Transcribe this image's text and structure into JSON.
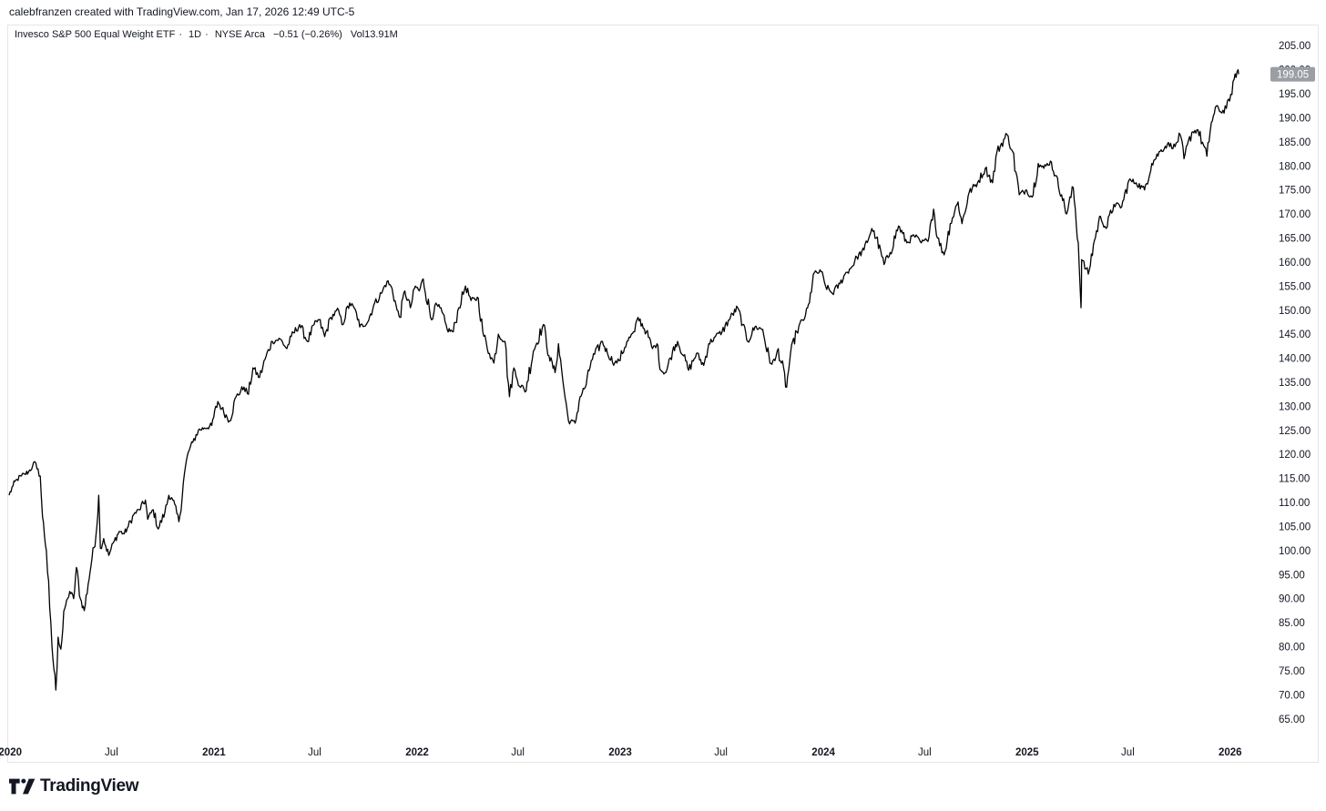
{
  "header": {
    "credit": "calebfranzen created with TradingView.com, Jan 17, 2026 12:49 UTC-5"
  },
  "legend": {
    "title": "Invesco S&P 500 Equal Weight ETF",
    "interval": "1D",
    "exchange": "NYSE Arca",
    "separator": "·",
    "change": "−0.51 (−0.26%)",
    "volume_label": "Vol",
    "volume_value": "13.91M"
  },
  "price_label": "199.05",
  "footer": {
    "brand": "TradingView",
    "logo_icon": "tradingview-logo-icon"
  },
  "colors": {
    "line": "#000000",
    "price_tag_bg": "#9b9ea3",
    "price_tag_text": "#ffffff",
    "axis_text": "#131722"
  },
  "chart_data": {
    "type": "line",
    "title": "Invesco S&P 500 Equal Weight ETF",
    "xlabel": "",
    "ylabel": "",
    "ylim": [
      62.5,
      207.5
    ],
    "grid": false,
    "y_ticks": [
      "205.00",
      "200.00",
      "195.00",
      "190.00",
      "185.00",
      "180.00",
      "175.00",
      "170.00",
      "165.00",
      "160.00",
      "155.00",
      "150.00",
      "145.00",
      "140.00",
      "135.00",
      "130.00",
      "125.00",
      "120.00",
      "115.00",
      "110.00",
      "105.00",
      "100.00",
      "95.00",
      "90.00",
      "85.00",
      "80.00",
      "75.00",
      "70.00",
      "65.00"
    ],
    "x_ticks": [
      {
        "label": "2020",
        "date": "2020-01-01",
        "year": true
      },
      {
        "label": "Jul",
        "date": "2020-07-01",
        "year": false
      },
      {
        "label": "2021",
        "date": "2021-01-01",
        "year": true
      },
      {
        "label": "Jul",
        "date": "2021-07-01",
        "year": false
      },
      {
        "label": "2022",
        "date": "2022-01-01",
        "year": true
      },
      {
        "label": "Jul",
        "date": "2022-07-01",
        "year": false
      },
      {
        "label": "2023",
        "date": "2023-01-01",
        "year": true
      },
      {
        "label": "Jul",
        "date": "2023-07-01",
        "year": false
      },
      {
        "label": "2024",
        "date": "2024-01-01",
        "year": true
      },
      {
        "label": "Jul",
        "date": "2024-07-01",
        "year": false
      },
      {
        "label": "2025",
        "date": "2025-01-01",
        "year": true
      },
      {
        "label": "Jul",
        "date": "2025-07-01",
        "year": false
      },
      {
        "label": "2026",
        "date": "2026-01-01",
        "year": true
      }
    ],
    "series": [
      {
        "points": [
          [
            "2019-12-30",
            111.5
          ],
          [
            "2020-01-06",
            113.5
          ],
          [
            "2020-01-13",
            114.8
          ],
          [
            "2020-01-21",
            115.5
          ],
          [
            "2020-01-27",
            115.9
          ],
          [
            "2020-02-03",
            116.4
          ],
          [
            "2020-02-10",
            117.5
          ],
          [
            "2020-02-14",
            118.5
          ],
          [
            "2020-02-18",
            117.0
          ],
          [
            "2020-02-24",
            115.5
          ],
          [
            "2020-02-28",
            107.0
          ],
          [
            "2020-03-06",
            100.0
          ],
          [
            "2020-03-12",
            88.0
          ],
          [
            "2020-03-16",
            80.0
          ],
          [
            "2020-03-23",
            71.0
          ],
          [
            "2020-03-27",
            82.0
          ],
          [
            "2020-04-01",
            79.5
          ],
          [
            "2020-04-08",
            88.0
          ],
          [
            "2020-04-13",
            90.0
          ],
          [
            "2020-04-17",
            91.5
          ],
          [
            "2020-04-24",
            90.0
          ],
          [
            "2020-04-29",
            96.5
          ],
          [
            "2020-05-06",
            90.0
          ],
          [
            "2020-05-13",
            87.5
          ],
          [
            "2020-05-20",
            93.0
          ],
          [
            "2020-05-27",
            98.5
          ],
          [
            "2020-06-03",
            103.0
          ],
          [
            "2020-06-08",
            111.5
          ],
          [
            "2020-06-11",
            100.5
          ],
          [
            "2020-06-17",
            102.5
          ],
          [
            "2020-06-26",
            99.0
          ],
          [
            "2020-07-06",
            102.0
          ],
          [
            "2020-07-15",
            104.0
          ],
          [
            "2020-07-24",
            103.5
          ],
          [
            "2020-07-31",
            105.0
          ],
          [
            "2020-08-10",
            107.5
          ],
          [
            "2020-08-20",
            108.5
          ],
          [
            "2020-08-31",
            110.5
          ],
          [
            "2020-09-04",
            106.5
          ],
          [
            "2020-09-14",
            108.5
          ],
          [
            "2020-09-23",
            104.5
          ],
          [
            "2020-10-05",
            108.0
          ],
          [
            "2020-10-12",
            111.5
          ],
          [
            "2020-10-19",
            110.5
          ],
          [
            "2020-10-30",
            106.0
          ],
          [
            "2020-11-09",
            116.0
          ],
          [
            "2020-11-16",
            120.5
          ],
          [
            "2020-11-24",
            122.5
          ],
          [
            "2020-12-04",
            125.0
          ],
          [
            "2020-12-15",
            125.5
          ],
          [
            "2020-12-28",
            126.0
          ],
          [
            "2021-01-08",
            131.0
          ],
          [
            "2021-01-15",
            129.5
          ],
          [
            "2021-01-29",
            127.0
          ],
          [
            "2021-02-10",
            132.0
          ],
          [
            "2021-02-24",
            134.0
          ],
          [
            "2021-03-04",
            132.5
          ],
          [
            "2021-03-12",
            138.0
          ],
          [
            "2021-03-24",
            136.0
          ],
          [
            "2021-04-05",
            140.5
          ],
          [
            "2021-04-16",
            143.5
          ],
          [
            "2021-04-30",
            144.0
          ],
          [
            "2021-05-12",
            142.0
          ],
          [
            "2021-05-20",
            144.5
          ],
          [
            "2021-06-04",
            147.0
          ],
          [
            "2021-06-18",
            143.5
          ],
          [
            "2021-06-30",
            147.0
          ],
          [
            "2021-07-09",
            148.0
          ],
          [
            "2021-07-19",
            144.5
          ],
          [
            "2021-07-30",
            148.5
          ],
          [
            "2021-08-13",
            150.0
          ],
          [
            "2021-08-19",
            147.0
          ],
          [
            "2021-09-02",
            151.5
          ],
          [
            "2021-09-14",
            149.5
          ],
          [
            "2021-09-20",
            146.5
          ],
          [
            "2021-10-04",
            147.5
          ],
          [
            "2021-10-15",
            151.0
          ],
          [
            "2021-10-29",
            153.5
          ],
          [
            "2021-11-08",
            156.0
          ],
          [
            "2021-11-17",
            154.5
          ],
          [
            "2021-11-26",
            150.0
          ],
          [
            "2021-12-01",
            148.5
          ],
          [
            "2021-12-10",
            154.0
          ],
          [
            "2021-12-20",
            150.5
          ],
          [
            "2021-12-29",
            155.0
          ],
          [
            "2022-01-05",
            154.0
          ],
          [
            "2022-01-12",
            156.5
          ],
          [
            "2022-01-27",
            148.0
          ],
          [
            "2022-02-02",
            151.0
          ],
          [
            "2022-02-11",
            150.5
          ],
          [
            "2022-02-24",
            146.0
          ],
          [
            "2022-03-07",
            145.5
          ],
          [
            "2022-03-17",
            150.5
          ],
          [
            "2022-03-29",
            155.0
          ],
          [
            "2022-04-08",
            152.0
          ],
          [
            "2022-04-21",
            152.5
          ],
          [
            "2022-04-29",
            145.5
          ],
          [
            "2022-05-11",
            141.0
          ],
          [
            "2022-05-19",
            139.0
          ],
          [
            "2022-05-27",
            145.0
          ],
          [
            "2022-06-08",
            143.5
          ],
          [
            "2022-06-16",
            132.0
          ],
          [
            "2022-06-24",
            138.0
          ],
          [
            "2022-06-30",
            135.5
          ],
          [
            "2022-07-14",
            133.0
          ],
          [
            "2022-07-29",
            141.5
          ],
          [
            "2022-08-16",
            147.0
          ],
          [
            "2022-08-26",
            140.5
          ],
          [
            "2022-09-06",
            137.0
          ],
          [
            "2022-09-12",
            143.0
          ],
          [
            "2022-09-22",
            133.5
          ],
          [
            "2022-09-30",
            127.0
          ],
          [
            "2022-10-12",
            126.5
          ],
          [
            "2022-10-21",
            132.0
          ],
          [
            "2022-11-01",
            134.5
          ],
          [
            "2022-11-10",
            139.5
          ],
          [
            "2022-11-30",
            143.5
          ],
          [
            "2022-12-09",
            141.0
          ],
          [
            "2022-12-22",
            139.0
          ],
          [
            "2022-12-30",
            139.5
          ],
          [
            "2023-01-13",
            143.5
          ],
          [
            "2023-01-27",
            145.5
          ],
          [
            "2023-02-02",
            148.5
          ],
          [
            "2023-02-17",
            145.5
          ],
          [
            "2023-02-28",
            142.0
          ],
          [
            "2023-03-08",
            143.0
          ],
          [
            "2023-03-15",
            137.5
          ],
          [
            "2023-03-24",
            137.0
          ],
          [
            "2023-04-05",
            141.5
          ],
          [
            "2023-04-14",
            143.5
          ],
          [
            "2023-04-25",
            140.5
          ],
          [
            "2023-05-04",
            137.5
          ],
          [
            "2023-05-18",
            141.0
          ],
          [
            "2023-05-31",
            138.5
          ],
          [
            "2023-06-09",
            143.0
          ],
          [
            "2023-06-21",
            144.5
          ],
          [
            "2023-07-03",
            145.5
          ],
          [
            "2023-07-18",
            148.5
          ],
          [
            "2023-07-31",
            150.5
          ],
          [
            "2023-08-09",
            147.0
          ],
          [
            "2023-08-18",
            143.5
          ],
          [
            "2023-08-31",
            146.5
          ],
          [
            "2023-09-14",
            146.0
          ],
          [
            "2023-09-27",
            139.0
          ],
          [
            "2023-10-06",
            139.5
          ],
          [
            "2023-10-12",
            142.0
          ],
          [
            "2023-10-27",
            134.0
          ],
          [
            "2023-11-03",
            141.0
          ],
          [
            "2023-11-14",
            145.5
          ],
          [
            "2023-11-30",
            149.0
          ],
          [
            "2023-12-07",
            151.5
          ],
          [
            "2023-12-14",
            157.5
          ],
          [
            "2023-12-28",
            158.0
          ],
          [
            "2024-01-05",
            155.0
          ],
          [
            "2024-01-17",
            153.5
          ],
          [
            "2024-01-31",
            155.5
          ],
          [
            "2024-02-09",
            157.5
          ],
          [
            "2024-02-21",
            159.0
          ],
          [
            "2024-03-01",
            161.0
          ],
          [
            "2024-03-14",
            162.5
          ],
          [
            "2024-03-28",
            167.0
          ],
          [
            "2024-04-05",
            165.0
          ],
          [
            "2024-04-19",
            159.5
          ],
          [
            "2024-04-30",
            162.0
          ],
          [
            "2024-05-15",
            167.5
          ],
          [
            "2024-05-30",
            164.0
          ],
          [
            "2024-06-12",
            165.5
          ],
          [
            "2024-06-25",
            164.0
          ],
          [
            "2024-07-05",
            164.5
          ],
          [
            "2024-07-17",
            171.0
          ],
          [
            "2024-07-24",
            165.0
          ],
          [
            "2024-08-05",
            161.5
          ],
          [
            "2024-08-16",
            168.0
          ],
          [
            "2024-08-30",
            172.5
          ],
          [
            "2024-09-06",
            168.0
          ],
          [
            "2024-09-19",
            174.5
          ],
          [
            "2024-10-04",
            176.5
          ],
          [
            "2024-10-18",
            179.5
          ],
          [
            "2024-10-31",
            176.5
          ],
          [
            "2024-11-08",
            183.0
          ],
          [
            "2024-11-26",
            186.5
          ],
          [
            "2024-12-06",
            183.0
          ],
          [
            "2024-12-18",
            174.0
          ],
          [
            "2024-12-31",
            175.0
          ],
          [
            "2025-01-10",
            173.5
          ],
          [
            "2025-01-21",
            180.5
          ],
          [
            "2025-01-31",
            179.5
          ],
          [
            "2025-02-12",
            181.0
          ],
          [
            "2025-02-21",
            178.0
          ],
          [
            "2025-03-04",
            174.0
          ],
          [
            "2025-03-13",
            170.0
          ],
          [
            "2025-03-25",
            175.5
          ],
          [
            "2025-04-03",
            164.0
          ],
          [
            "2025-04-08",
            150.5
          ],
          [
            "2025-04-09",
            160.5
          ],
          [
            "2025-04-21",
            157.5
          ],
          [
            "2025-05-02",
            164.5
          ],
          [
            "2025-05-13",
            169.5
          ],
          [
            "2025-05-23",
            167.0
          ],
          [
            "2025-06-06",
            172.0
          ],
          [
            "2025-06-20",
            171.5
          ],
          [
            "2025-07-03",
            177.0
          ],
          [
            "2025-07-16",
            176.5
          ],
          [
            "2025-07-31",
            175.0
          ],
          [
            "2025-08-13",
            180.5
          ],
          [
            "2025-08-28",
            183.0
          ],
          [
            "2025-09-10",
            184.5
          ],
          [
            "2025-09-24",
            184.0
          ],
          [
            "2025-10-03",
            186.5
          ],
          [
            "2025-10-10",
            181.5
          ],
          [
            "2025-10-24",
            187.0
          ],
          [
            "2025-11-04",
            187.5
          ],
          [
            "2025-11-20",
            182.0
          ],
          [
            "2025-11-28",
            189.0
          ],
          [
            "2025-12-09",
            192.5
          ],
          [
            "2025-12-17",
            191.0
          ],
          [
            "2025-12-31",
            193.5
          ],
          [
            "2026-01-08",
            198.0
          ],
          [
            "2026-01-15",
            200.0
          ],
          [
            "2026-01-16",
            199.05
          ]
        ]
      }
    ],
    "last_value": 199.05
  }
}
